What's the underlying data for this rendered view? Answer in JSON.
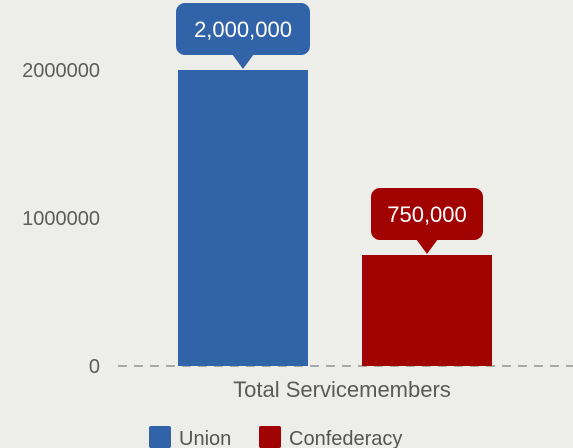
{
  "chart_data": {
    "type": "bar",
    "categories": [
      "Total Servicemembers"
    ],
    "series": [
      {
        "name": "Union",
        "values": [
          2000000
        ],
        "color": "#3163a8",
        "label": "2,000,000"
      },
      {
        "name": "Confederacy",
        "values": [
          750000
        ],
        "color": "#a10202",
        "label": "750,000"
      }
    ],
    "y_ticks": [
      {
        "value": 0,
        "label": "0"
      },
      {
        "value": 1000000,
        "label": "1000000"
      },
      {
        "value": 2000000,
        "label": "2000000"
      }
    ],
    "ylim": [
      0,
      2000000
    ],
    "grid": false,
    "baseline": "dashed",
    "legend_position": "bottom",
    "title": "",
    "xlabel": "",
    "ylabel": ""
  }
}
